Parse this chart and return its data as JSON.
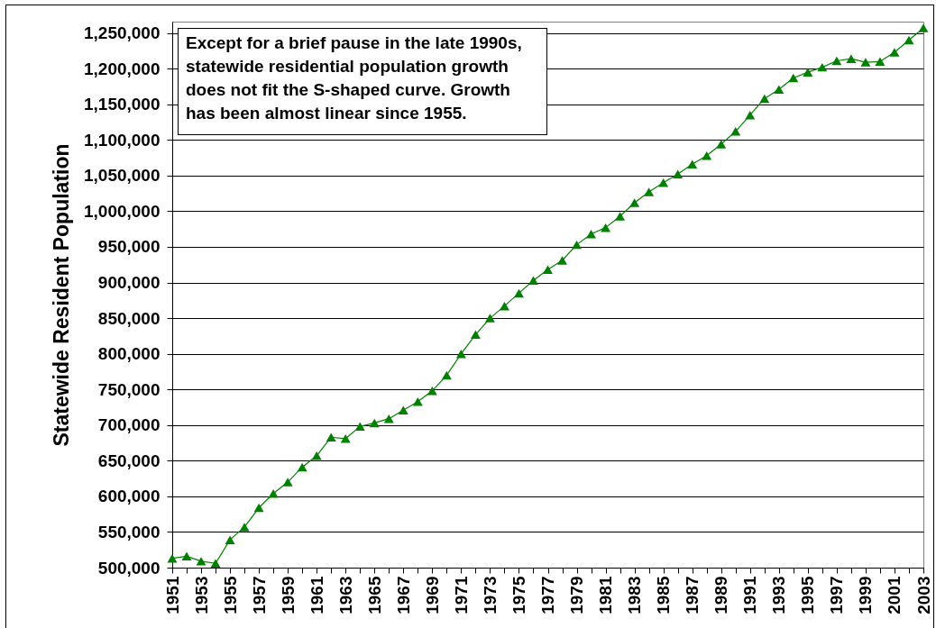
{
  "chart_data": {
    "type": "line",
    "ylabel": "Statewide Resident Population",
    "annotations": [
      "Except for a brief pause in the late 1990s, statewide residential population growth does not fit the S-shaped curve. Growth has been almost linear since 1955."
    ],
    "x": [
      1951,
      1952,
      1953,
      1954,
      1955,
      1956,
      1957,
      1958,
      1959,
      1960,
      1961,
      1962,
      1963,
      1964,
      1965,
      1966,
      1967,
      1968,
      1969,
      1970,
      1971,
      1972,
      1973,
      1974,
      1975,
      1976,
      1977,
      1978,
      1979,
      1980,
      1981,
      1982,
      1983,
      1984,
      1985,
      1986,
      1987,
      1988,
      1989,
      1990,
      1991,
      1992,
      1993,
      1994,
      1995,
      1996,
      1997,
      1998,
      1999,
      2000,
      2001,
      2002,
      2003
    ],
    "series": [
      {
        "color": "#008000",
        "values": [
          513000,
          516000,
          509000,
          506000,
          539000,
          557000,
          584000,
          604000,
          620000,
          641000,
          657000,
          683000,
          681000,
          698000,
          703000,
          709000,
          721000,
          733000,
          748000,
          770000,
          800000,
          827000,
          850000,
          867000,
          885000,
          903000,
          918000,
          931000,
          953000,
          968000,
          977000,
          993000,
          1012000,
          1027000,
          1040000,
          1052000,
          1066000,
          1078000,
          1094000,
          1112000,
          1135000,
          1158000,
          1171000,
          1187000,
          1195000,
          1202000,
          1211000,
          1214000,
          1209000,
          1210000,
          1223000,
          1240000,
          1257000
        ]
      }
    ],
    "xlim": [
      1951,
      2003
    ],
    "xticks": [
      1951,
      {
        "value": 1952,
        "label": null
      },
      1953,
      {
        "value": 1954,
        "label": null
      },
      1955,
      {
        "value": 1956,
        "label": null
      },
      1957,
      {
        "value": 1958,
        "label": null
      },
      1959,
      {
        "value": 1960,
        "label": null
      },
      1961,
      {
        "value": 1962,
        "label": null
      },
      1963,
      {
        "value": 1964,
        "label": null
      },
      1965,
      {
        "value": 1966,
        "label": null
      },
      1967,
      {
        "value": 1968,
        "label": null
      },
      1969,
      {
        "value": 1970,
        "label": null
      },
      1971,
      {
        "value": 1972,
        "label": null
      },
      1973,
      {
        "value": 1974,
        "label": null
      },
      1975,
      {
        "value": 1976,
        "label": null
      },
      1977,
      {
        "value": 1978,
        "label": null
      },
      1979,
      {
        "value": 1980,
        "label": null
      },
      1981,
      {
        "value": 1982,
        "label": null
      },
      1983,
      {
        "value": 1984,
        "label": null
      },
      1985,
      {
        "value": 1986,
        "label": null
      },
      1987,
      {
        "value": 1988,
        "label": null
      },
      1989,
      {
        "value": 1990,
        "label": null
      },
      1991,
      {
        "value": 1992,
        "label": null
      },
      1993,
      {
        "value": 1994,
        "label": null
      },
      1995,
      {
        "value": 1996,
        "label": null
      },
      1997,
      {
        "value": 1998,
        "label": null
      },
      1999,
      {
        "value": 2000,
        "label": null
      },
      2001,
      {
        "value": 2002,
        "label": null
      },
      2003
    ],
    "ylim": [
      500000,
      1266000
    ],
    "yticks": [
      {
        "value": 500000,
        "label": "500,000"
      },
      {
        "value": 550000,
        "label": "550,000"
      },
      {
        "value": 600000,
        "label": "600,000"
      },
      {
        "value": 650000,
        "label": "650,000"
      },
      {
        "value": 700000,
        "label": "700,000"
      },
      {
        "value": 750000,
        "label": "750,000"
      },
      {
        "value": 800000,
        "label": "800,000"
      },
      {
        "value": 850000,
        "label": "850,000"
      },
      {
        "value": 900000,
        "label": "900,000"
      },
      {
        "value": 950000,
        "label": "950,000"
      },
      {
        "value": 1000000,
        "label": "1,000,000"
      },
      {
        "value": 1050000,
        "label": "1,050,000"
      },
      {
        "value": 1100000,
        "label": "1,100,000"
      },
      {
        "value": 1150000,
        "label": "1,150,000"
      },
      {
        "value": 1200000,
        "label": "1,200,000"
      },
      {
        "value": 1250000,
        "label": "1,250,000"
      }
    ],
    "grid": "y",
    "marker": "triangle",
    "line_style": "solid"
  }
}
